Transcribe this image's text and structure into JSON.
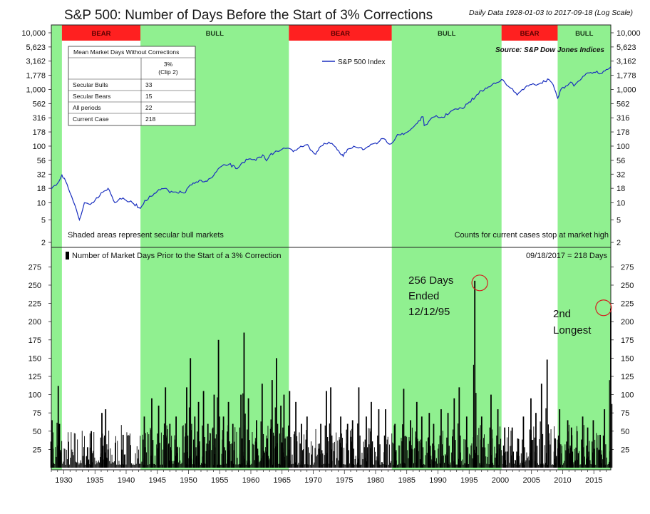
{
  "title": "S&P 500: Number of Days Before the Start of 3% Corrections",
  "subtitle": "Daily Data 1928-01-03 to 2017-09-18 (Log Scale)",
  "source": "Source:  S&P Dow Jones Indices",
  "legend_label": "S&P 500 Index",
  "table": {
    "header": "Mean Market Days Without Corrections",
    "col_header_line1": "3%",
    "col_header_line2": "(Clip 2)",
    "rows": [
      {
        "label": "Secular Bulls",
        "value": "33"
      },
      {
        "label": "Secular Bears",
        "value": "15"
      },
      {
        "label": "All periods",
        "value": "22"
      },
      {
        "label": "Current Case",
        "value": "218"
      }
    ]
  },
  "notes": {
    "shaded": "Shaded areas represent secular bull markets",
    "counts": "Counts for current cases stop at market high",
    "bottom_legend": "Number of Market Days Prior to the Start of a 3% Correction",
    "current": "09/18/2017 = 218 Days"
  },
  "annotations": {
    "a1_l1": "256 Days",
    "a1_l2": "Ended",
    "a1_l3": "12/12/95",
    "a2_l1": "2nd",
    "a2_l2": "Longest"
  },
  "colors": {
    "bull": "#90f090",
    "bear": "#ff2020",
    "line": "#1a2fbf",
    "bars": "#000000",
    "circle": "#d42020"
  },
  "chart_data": [
    {
      "type": "line",
      "title": "S&P 500: Number of Days Before the Start of 3% Corrections",
      "yscale": "log",
      "ylim": [
        2,
        10000
      ],
      "xlim": [
        1928,
        2017.72
      ],
      "y_ticks": [
        "10,000",
        "5,623",
        "3,162",
        "1,778",
        "1,000",
        "562",
        "316",
        "178",
        "100",
        "56",
        "32",
        "18",
        "10",
        "5",
        "2"
      ],
      "x_ticks": [
        1930,
        1935,
        1940,
        1945,
        1950,
        1955,
        1960,
        1965,
        1970,
        1975,
        1980,
        1985,
        1990,
        1995,
        2000,
        2005,
        2010,
        2015
      ],
      "regimes": [
        {
          "label": "BEAR",
          "start": 1929.7,
          "end": 1942.3
        },
        {
          "label": "BULL",
          "start": 1942.3,
          "end": 1966.1
        },
        {
          "label": "BEAR",
          "start": 1966.1,
          "end": 1982.6
        },
        {
          "label": "BULL",
          "start": 1982.6,
          "end": 2000.2
        },
        {
          "label": "BEAR",
          "start": 2000.2,
          "end": 2009.2
        },
        {
          "label": "BULL",
          "start": 2009.2,
          "end": 2017.72
        }
      ],
      "series": [
        {
          "name": "S&P 500 Index",
          "x": [
            1928.0,
            1929.0,
            1929.7,
            1930.3,
            1931.0,
            1931.8,
            1932.5,
            1933.3,
            1934.0,
            1935.0,
            1936.0,
            1937.1,
            1938.2,
            1939.0,
            1940.0,
            1941.0,
            1942.3,
            1943.0,
            1944.0,
            1945.0,
            1946.4,
            1947.0,
            1948.0,
            1949.5,
            1950.0,
            1951.0,
            1952.0,
            1953.0,
            1954.0,
            1955.0,
            1956.5,
            1957.8,
            1958.5,
            1959.5,
            1960.8,
            1961.9,
            1962.5,
            1963.0,
            1964.0,
            1965.0,
            1966.0,
            1966.8,
            1968.0,
            1968.9,
            1970.4,
            1971.0,
            1972.0,
            1973.0,
            1974.5,
            1974.8,
            1975.5,
            1976.5,
            1977.5,
            1978.2,
            1979.0,
            1980.2,
            1980.9,
            1982.5,
            1983.5,
            1984.5,
            1985.5,
            1987.6,
            1987.8,
            1988.5,
            1989.5,
            1990.8,
            1992.0,
            1993.0,
            1994.0,
            1995.0,
            1996.0,
            1997.0,
            1998.5,
            1999.0,
            2000.2,
            2001.0,
            2001.7,
            2002.7,
            2003.5,
            2004.5,
            2005.5,
            2006.5,
            2007.8,
            2008.5,
            2008.9,
            2009.2,
            2009.6,
            2010.5,
            2011.3,
            2011.8,
            2012.5,
            2013.5,
            2014.5,
            2015.5,
            2016.1,
            2017.0,
            2017.7
          ],
          "values": [
            17.5,
            22,
            31,
            24,
            15,
            9,
            5,
            10,
            9.5,
            11,
            15,
            18,
            10,
            12,
            11,
            10,
            8,
            11,
            13,
            16,
            18,
            15,
            15.5,
            15,
            19,
            22,
            25,
            24,
            30,
            42,
            48,
            40,
            50,
            58,
            56,
            70,
            55,
            68,
            82,
            88,
            92,
            80,
            100,
            106,
            72,
            95,
            110,
            112,
            70,
            66,
            88,
            100,
            95,
            88,
            100,
            110,
            135,
            110,
            160,
            160,
            190,
            330,
            230,
            270,
            330,
            320,
            410,
            450,
            460,
            600,
            740,
            950,
            1150,
            1300,
            1500,
            1200,
            1050,
            800,
            1000,
            1150,
            1220,
            1300,
            1500,
            1200,
            900,
            700,
            950,
            1150,
            1350,
            1150,
            1400,
            1750,
            2000,
            2100,
            1900,
            2250,
            2500
          ]
        }
      ]
    },
    {
      "type": "bar",
      "title": "Number of Market Days Prior to the Start of a 3% Correction",
      "ylim": [
        0,
        290
      ],
      "y_ticks": [
        25,
        50,
        75,
        100,
        125,
        150,
        175,
        200,
        225,
        250,
        275
      ],
      "x_ticks": [
        1930,
        1935,
        1940,
        1945,
        1950,
        1955,
        1960,
        1965,
        1970,
        1975,
        1980,
        1985,
        1990,
        1995,
        2000,
        2005,
        2010,
        2015
      ],
      "peaks": {
        "x": [
          1928.1,
          1929.1,
          1929.3,
          1933.8,
          1934.4,
          1936.1,
          1936.7,
          1939.5,
          1942.9,
          1944.1,
          1945.2,
          1946.3,
          1947.0,
          1948.0,
          1949.7,
          1950.3,
          1951.0,
          1951.6,
          1952.4,
          1953.1,
          1954.1,
          1954.8,
          1955.6,
          1956.4,
          1957.1,
          1958.4,
          1958.9,
          1959.6,
          1960.9,
          1961.8,
          1962.6,
          1963.4,
          1964.1,
          1964.8,
          1965.3,
          1966.2,
          1967.2,
          1968.1,
          1969.0,
          1971.2,
          1972.1,
          1972.8,
          1974.4,
          1975.5,
          1976.3,
          1977.3,
          1978.5,
          1979.3,
          1980.5,
          1981.6,
          1983.1,
          1984.5,
          1985.6,
          1986.6,
          1987.4,
          1988.6,
          1989.3,
          1990.5,
          1991.6,
          1992.6,
          1993.4,
          1994.6,
          1995.9,
          1997.0,
          1998.5,
          1999.6,
          2000.7,
          2001.9,
          2002.8,
          2003.7,
          2004.9,
          2005.7,
          2006.6,
          2007.5,
          2008.8,
          2009.5,
          2010.8,
          2011.4,
          2012.3,
          2013.2,
          2014.0,
          2014.9,
          2016.0,
          2016.7,
          2017.7
        ],
        "values": [
          65,
          112,
          60,
          28,
          50,
          75,
          80,
          45,
          70,
          95,
          85,
          110,
          60,
          70,
          110,
          150,
          70,
          90,
          105,
          60,
          100,
          175,
          70,
          90,
          60,
          100,
          185,
          95,
          65,
          115,
          40,
          120,
          150,
          85,
          100,
          105,
          90,
          60,
          70,
          60,
          105,
          110,
          70,
          60,
          65,
          110,
          70,
          90,
          80,
          80,
          60,
          108,
          65,
          90,
          70,
          75,
          60,
          80,
          75,
          95,
          110,
          70,
          256,
          70,
          100,
          80,
          55,
          55,
          40,
          70,
          95,
          75,
          115,
          148,
          40,
          80,
          65,
          55,
          50,
          70,
          55,
          65,
          45,
          80,
          218
        ]
      }
    }
  ]
}
